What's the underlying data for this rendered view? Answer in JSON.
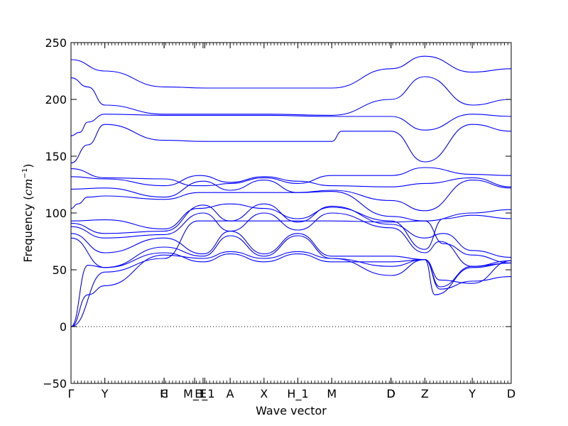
{
  "chart_data": {
    "type": "line",
    "title": "",
    "xlabel": "Wave vector",
    "ylabel_main": "Frequency (",
    "ylabel_unit_base": "cm",
    "ylabel_unit_exp": "−1",
    "ylabel_close": ")",
    "ylim": [
      -50,
      250
    ],
    "yticks": [
      -50,
      0,
      50,
      100,
      150,
      200,
      250
    ],
    "ytick_labels": [
      "−50",
      "0",
      "50",
      "100",
      "150",
      "200",
      "250"
    ],
    "xlim": [
      0,
      26
    ],
    "high_symmetry_points": [
      {
        "label": "Γ",
        "x": 0
      },
      {
        "label": "Y",
        "x": 2
      },
      {
        "label": "H",
        "x": 5.5
      },
      {
        "label": "C",
        "x": 5.5
      },
      {
        "label": "M_1",
        "x": 7.3
      },
      {
        "label": "E",
        "x": 7.8
      },
      {
        "label": "E_1",
        "x": 7.9
      },
      {
        "label": "A",
        "x": 9.4
      },
      {
        "label": "X",
        "x": 11.4
      },
      {
        "label": "H_1",
        "x": 13.4
      },
      {
        "label": "M",
        "x": 15.4
      },
      {
        "label": "D",
        "x": 18.9
      },
      {
        "label": "D",
        "x": 18.9
      },
      {
        "label": "Z",
        "x": 20.9
      },
      {
        "label": "Y",
        "x": 23.7
      },
      {
        "label": "D",
        "x": 26
      }
    ],
    "zero_line": {
      "y": 0,
      "style": "dotted"
    },
    "series_color": "#0000ff",
    "series": [
      {
        "x": [
          0,
          2,
          5.5,
          8,
          11.4,
          15.4,
          18.9,
          20.9,
          23.7,
          26
        ],
        "y": [
          235,
          225,
          211,
          210,
          210,
          210,
          227,
          238,
          224,
          227
        ]
      },
      {
        "x": [
          0,
          1,
          2,
          5.5,
          8,
          11.4,
          15.4,
          18.9,
          20.9,
          23.7,
          26
        ],
        "y": [
          219,
          211,
          195,
          187,
          187,
          187,
          186,
          200,
          220,
          195,
          200
        ]
      },
      {
        "x": [
          0,
          0.5,
          1,
          2,
          5.5,
          8,
          11.4,
          15.4,
          18.9,
          20.9,
          23.7,
          26
        ],
        "y": [
          168,
          171,
          180,
          187,
          186,
          186,
          186,
          185,
          185,
          173,
          187,
          185
        ]
      },
      {
        "x": [
          0,
          1,
          2,
          5.5,
          8,
          9.4,
          11.4,
          13.4,
          15.4,
          16,
          18.9,
          20.9,
          23.7,
          26
        ],
        "y": [
          144,
          160,
          178,
          164,
          163,
          163,
          163,
          163,
          163,
          172,
          172,
          145,
          178,
          172
        ]
      },
      {
        "x": [
          0,
          2,
          5.5,
          7.3,
          8,
          9.4,
          11.4,
          13.4,
          15.4,
          18.9,
          20.9,
          23.7,
          26
        ],
        "y": [
          139,
          131,
          130,
          124,
          124,
          126,
          131,
          126,
          133,
          133,
          140,
          134,
          133
        ]
      },
      {
        "x": [
          0,
          2,
          5.5,
          7.6,
          9.4,
          11.4,
          13.4,
          15.4,
          18.9,
          20.9,
          23.7,
          26
        ],
        "y": [
          132,
          130,
          124,
          133,
          127,
          132,
          128,
          124,
          123,
          126,
          131,
          123
        ]
      },
      {
        "x": [
          0,
          2,
          5.5,
          7.8,
          9.4,
          11.4,
          13.4,
          15.4,
          18.9,
          20.9,
          23.7,
          26
        ],
        "y": [
          121,
          122,
          114,
          128,
          120,
          129,
          118,
          120,
          111,
          102,
          129,
          122
        ]
      },
      {
        "x": [
          0,
          0.4,
          1,
          2,
          5.5,
          7.6,
          9.4,
          11.4,
          13.4,
          15.4,
          18.9,
          20.9,
          23.7,
          26
        ],
        "y": [
          104,
          108,
          114,
          115,
          112,
          118,
          118,
          118,
          118,
          119,
          97,
          93,
          100,
          103
        ]
      },
      {
        "x": [
          0,
          2,
          5.5,
          7.5,
          9.4,
          11.4,
          13.4,
          15.4,
          18.9,
          20.9,
          22,
          23.7,
          26
        ],
        "y": [
          93,
          94,
          86,
          104,
          108,
          104,
          95,
          105,
          93,
          68,
          95,
          98,
          95
        ]
      },
      {
        "x": [
          0,
          2,
          5.5,
          7.8,
          9.4,
          11.4,
          13.4,
          15.4,
          18.9,
          20.9,
          22,
          23.7,
          26
        ],
        "y": [
          91,
          82,
          84,
          107,
          93,
          108,
          92,
          106,
          90,
          78,
          82,
          67,
          61
        ]
      },
      {
        "x": [
          0,
          2,
          5.5,
          7.8,
          9.4,
          11.4,
          13.4,
          15.4,
          18.9,
          20.9,
          21.8,
          23.7,
          26
        ],
        "y": [
          88,
          78,
          81,
          100,
          84,
          100,
          85,
          100,
          87,
          65,
          75,
          53,
          58
        ]
      },
      {
        "x": [
          0,
          2,
          5.5,
          7.8,
          9.4,
          11.4,
          13.4,
          15.4,
          18.9,
          20.9,
          21.5,
          23.7,
          26
        ],
        "y": [
          82,
          65,
          78,
          64,
          84,
          64,
          82,
          62,
          62,
          59,
          28,
          52,
          56
        ]
      },
      {
        "x": [
          0,
          2,
          5.5,
          7.8,
          9.4,
          11.4,
          13.4,
          15.4,
          18.9,
          20.9,
          21.8,
          23.7,
          26
        ],
        "y": [
          78,
          52,
          70,
          62,
          80,
          62,
          80,
          60,
          45,
          59,
          33,
          40,
          44
        ]
      },
      {
        "x": [
          0,
          1,
          2,
          5.5,
          7.8,
          9.4,
          11.4,
          13.4,
          15.4,
          18.9,
          20.9,
          21.8,
          23.7,
          26
        ],
        "y": [
          0,
          54,
          52,
          65,
          57,
          64,
          57,
          64,
          57,
          57,
          59,
          41,
          38,
          58
        ]
      },
      {
        "x": [
          0,
          1,
          2,
          5.5,
          7.8,
          9.4,
          11.4,
          13.4,
          15.4,
          18.9,
          20.9,
          21.8,
          23.7,
          26
        ],
        "y": [
          0,
          28,
          36,
          63,
          60,
          66,
          60,
          66,
          60,
          53,
          59,
          35,
          53,
          56
        ]
      },
      {
        "x": [
          0,
          2,
          5.5,
          7.5,
          9.4,
          11.4,
          13.4,
          15.4,
          18.9,
          20.9,
          22,
          23.7,
          26
        ],
        "y": [
          0,
          48,
          60,
          93,
          93,
          93,
          93,
          93,
          92,
          93,
          73,
          63,
          56
        ]
      }
    ]
  }
}
